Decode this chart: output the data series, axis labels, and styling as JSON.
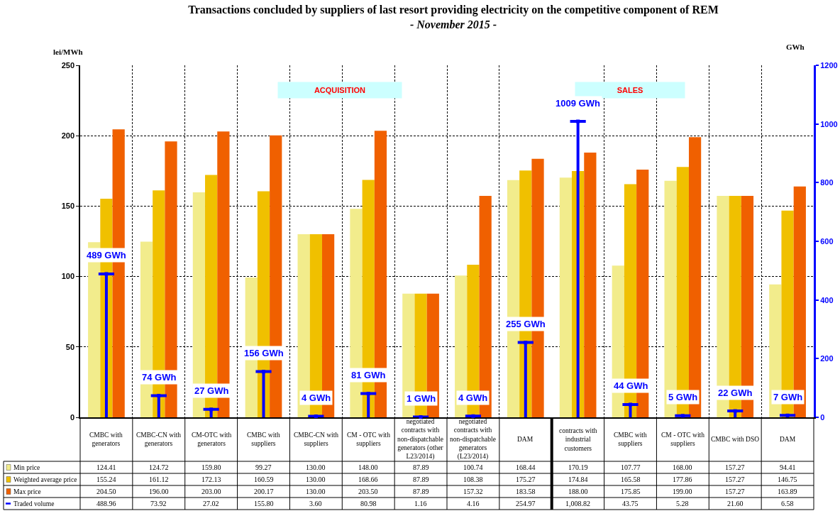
{
  "chart_data": {
    "type": "bar",
    "title": "Transactions concluded by suppliers of last resort providing electricity on the competitive component of REM",
    "subtitle": "- November 2015 -",
    "ylabel": "lei/MWh",
    "y2label": "GWh",
    "categories": [
      "CMBC with generators",
      "CMBC-CN with generators",
      "CM-OTC with generators",
      "CMBC with suppliers",
      "CMBC-CN with suppliers",
      "CM - OTC with suppliers",
      "negotiated contracts with non-dispatchable generators (other L23/2014)",
      "negotiated contracts with non-dispatchable generators (L23/2014)",
      "DAM",
      "contracts with industrial customers",
      "CMBC with suppliers",
      "CM - OTC with suppliers",
      "CMBC with DSO",
      "DAM"
    ],
    "series": [
      {
        "name": "Min price",
        "color": "#f2ec8c",
        "values": [
          124.41,
          124.72,
          159.8,
          99.27,
          130.0,
          148.0,
          87.89,
          100.74,
          168.44,
          170.19,
          107.77,
          168.0,
          157.27,
          94.41
        ],
        "value_labels": [
          "124.41",
          "124.72",
          "159.80",
          "99.27",
          "130.00",
          "148.00",
          "87.89",
          "100.74",
          "168.44",
          "170.19",
          "107.77",
          "168.00",
          "157.27",
          "94.41"
        ]
      },
      {
        "name": "Weighted average price",
        "color": "#f0c000",
        "values": [
          155.24,
          161.12,
          172.13,
          160.59,
          130.0,
          168.66,
          87.89,
          108.38,
          175.27,
          174.84,
          165.58,
          177.86,
          157.27,
          146.75
        ],
        "value_labels": [
          "155.24",
          "161.12",
          "172.13",
          "160.59",
          "130.00",
          "168.66",
          "87.89",
          "108.38",
          "175.27",
          "174.84",
          "165.58",
          "177.86",
          "157.27",
          "146.75"
        ]
      },
      {
        "name": "Max price",
        "color": "#f06000",
        "values": [
          204.5,
          196.0,
          203.0,
          200.17,
          130.0,
          203.5,
          87.89,
          157.32,
          183.58,
          188.0,
          175.85,
          199.0,
          157.27,
          163.89
        ],
        "value_labels": [
          "204.50",
          "196.00",
          "203.00",
          "200.17",
          "130.00",
          "203.50",
          "87.89",
          "157.32",
          "183.58",
          "188.00",
          "175.85",
          "199.00",
          "157.27",
          "163.89"
        ]
      },
      {
        "name": "Traded volume",
        "type": "lollipop",
        "axis": "y2",
        "color": "#0000ff",
        "values": [
          488.96,
          73.92,
          27.02,
          155.8,
          3.6,
          80.98,
          1.16,
          4.16,
          254.97,
          1008.82,
          43.75,
          5.28,
          21.6,
          6.58
        ],
        "value_labels": [
          "488.96",
          "73.92",
          "27.02",
          "155.80",
          "3.60",
          "80.98",
          "1.16",
          "4.16",
          "254.97",
          "1,008.82",
          "43.75",
          "5.28",
          "21.60",
          "6.58"
        ]
      }
    ],
    "ylim": [
      0,
      250
    ],
    "yticks": [
      0,
      50,
      100,
      150,
      200,
      250
    ],
    "y2lim": [
      0,
      1200
    ],
    "y2ticks": [
      0,
      200,
      400,
      600,
      800,
      1000,
      1200
    ],
    "annotations": [
      "ACQUISITION",
      "SALES",
      "489 GWh",
      "74 GWh",
      "27 GWh",
      "156 GWh",
      "4 GWh",
      "81 GWh",
      "1 GWh",
      "4 GWh",
      "255 GWh",
      "1009 GWh",
      "44 GWh",
      "5 GWh",
      "22 GWh",
      "7 GWh"
    ],
    "marker": "square",
    "grid": true,
    "legend": "bottom left"
  }
}
